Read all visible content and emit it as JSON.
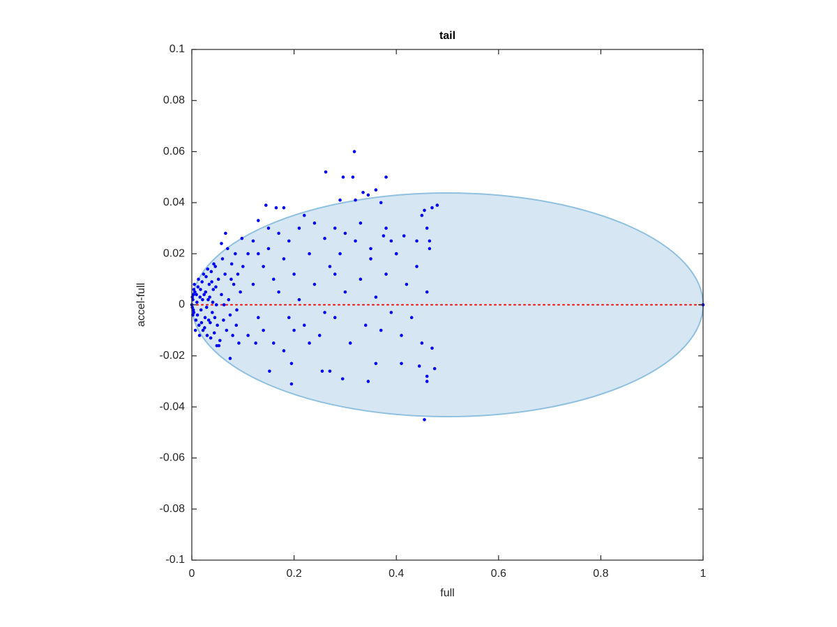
{
  "chart_data": {
    "type": "scatter",
    "title": "tail",
    "xlabel": "full",
    "ylabel": "accel-full",
    "xlim": [
      0,
      1
    ],
    "ylim": [
      -0.1,
      0.1
    ],
    "xticks": [
      0,
      0.2,
      0.4,
      0.6,
      0.8,
      1
    ],
    "yticks": [
      -0.1,
      -0.08,
      -0.06,
      -0.04,
      -0.02,
      0,
      0.02,
      0.04,
      0.06,
      0.08,
      0.1
    ],
    "grid": false,
    "box": true,
    "color": "#0000ff",
    "ellipse": {
      "cx": 0.5,
      "cy": 0,
      "rx": 0.5,
      "ry": 0.0438,
      "fill": "#d6e7f3",
      "stroke": "#8fc0df"
    },
    "hline": {
      "value": 0,
      "color": "#ff0000"
    },
    "x": [
      0.318,
      0.262,
      0.296,
      0.315,
      0.38,
      0.335,
      0.36,
      0.345,
      0.32,
      0.37,
      0.29,
      0.145,
      0.165,
      0.18,
      0.48,
      0.47,
      0.455,
      0.46,
      0.45,
      0.455,
      0.46,
      0.345,
      0.195,
      0.295,
      0.152,
      0.255,
      0.27,
      0.36,
      0.41,
      0.445,
      0.475,
      0.46,
      0.075,
      0.195,
      1,
      0.44,
      0.465,
      0.465,
      0.415,
      0.38,
      0.375,
      0.39,
      0.4,
      0.12,
      0.13,
      0.14,
      0.15,
      0.16,
      0.17,
      0.18,
      0.19,
      0.2,
      0.21,
      0.22,
      0.23,
      0.24,
      0.25,
      0.26,
      0.27,
      0.28,
      0.29,
      0.3,
      0.31,
      0.32,
      0.33,
      0.34,
      0.35,
      0.36,
      0.37,
      0.38,
      0.39,
      0.4,
      0.41,
      0.42,
      0.43,
      0.44,
      0.45,
      0.46,
      0.47,
      0.11,
      0.13,
      0.14,
      0.16,
      0.18,
      0.2,
      0.22,
      0.24,
      0.28,
      0.3,
      0.33,
      0.35,
      0.28,
      0.26,
      0.23,
      0.21,
      0.19,
      0.17,
      0.15,
      0.13,
      0.11,
      0.1,
      0.12,
      0.125,
      0.002,
      0.004,
      0.006,
      0.008,
      0.01,
      0.012,
      0.014,
      0.016,
      0.018,
      0.02,
      0.022,
      0.024,
      0.026,
      0.028,
      0.03,
      0.032,
      0.034,
      0.036,
      0.038,
      0.04,
      0.042,
      0.044,
      0.046,
      0.048,
      0.05,
      0.052,
      0.055,
      0.058,
      0.06,
      0.062,
      0.065,
      0.068,
      0.07,
      0.072,
      0.075,
      0.078,
      0.08,
      0.082,
      0.085,
      0.088,
      0.09,
      0.092,
      0.095,
      0.098,
      0.005,
      0.007,
      0.009,
      0.011,
      0.013,
      0.015,
      0.017,
      0.019,
      0.021,
      0.023,
      0.025,
      0.027,
      0.029,
      0.031,
      0.033,
      0.035,
      0.037,
      0.039,
      0.041,
      0.043,
      0.045,
      0.047,
      0.049,
      0.001,
      0.003,
      0,
      0.001,
      0.002,
      0.003,
      0.004,
      0.066,
      0.058,
      0.053,
      0.063,
      0.077,
      0.087
    ],
    "values": [
      0.06,
      0.052,
      0.05,
      0.05,
      0.05,
      0.044,
      0.045,
      0.043,
      0.041,
      0.04,
      0.041,
      0.039,
      0.038,
      0.038,
      0.039,
      0.038,
      0.037,
      0.03,
      0.035,
      -0.045,
      -0.03,
      -0.03,
      -0.031,
      -0.029,
      -0.026,
      -0.026,
      -0.026,
      -0.023,
      -0.023,
      -0.024,
      -0.025,
      -0.028,
      -0.021,
      -0.023,
      0,
      0.025,
      0.025,
      0.022,
      0.027,
      0.03,
      0.027,
      0.025,
      0.02,
      0.025,
      0.02,
      0.015,
      0.022,
      0.01,
      0.005,
      0.018,
      -0.005,
      0.012,
      0.03,
      -0.008,
      0.02,
      0.008,
      -0.012,
      0.026,
      0.015,
      -0.005,
      0.02,
      0.005,
      -0.015,
      0.025,
      0.01,
      -0.008,
      0.018,
      0.003,
      -0.01,
      0.012,
      -0.003,
      0.02,
      -0.012,
      0.008,
      -0.005,
      0.015,
      -0.015,
      0.005,
      -0.017,
      -0.012,
      -0.005,
      -0.01,
      -0.015,
      -0.018,
      -0.01,
      0.035,
      0.032,
      0.03,
      0.028,
      0.032,
      0.022,
      0.012,
      -0.003,
      -0.015,
      0.002,
      0.025,
      0.028,
      0.03,
      0.033,
      0.02,
      0.015,
      0.008,
      -0.015,
      0.002,
      -0.003,
      0.005,
      -0.006,
      0.001,
      0.007,
      -0.008,
      0.003,
      -0.002,
      0.009,
      -0.01,
      0.004,
      -0.005,
      0.011,
      -0.012,
      0.002,
      0.008,
      -0.007,
      0.013,
      -0.003,
      0.006,
      -0.011,
      0.015,
      0,
      -0.008,
      0.01,
      -0.014,
      0.004,
      0.018,
      -0.006,
      0.012,
      -0.01,
      0.022,
      0.002,
      -0.004,
      0.016,
      -0.012,
      0.008,
      0.02,
      -0.002,
      0.012,
      -0.015,
      0.005,
      0.026,
      0.008,
      -0.01,
      0.004,
      -0.004,
      0.01,
      -0.012,
      0.006,
      -0.007,
      0.002,
      0.012,
      -0.009,
      0.005,
      -0.001,
      0.014,
      -0.006,
      0.003,
      -0.013,
      0.009,
      0.001,
      0.016,
      -0.005,
      0.007,
      -0.016,
      -0.001,
      0.004,
      0,
      0.003,
      -0.004,
      -0.002,
      0.006,
      0.028,
      0.024,
      -0.016,
      0,
      0.01,
      -0.008
    ]
  }
}
